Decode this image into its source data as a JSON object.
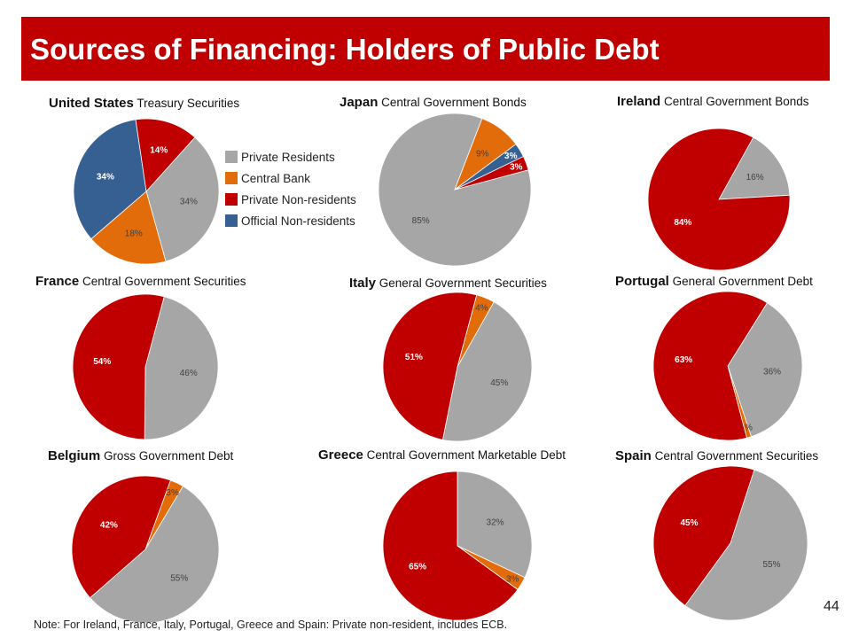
{
  "title": "Sources of Financing: Holders of Public Debt",
  "legend": [
    {
      "label": "Private Residents",
      "color": "#a6a6a6"
    },
    {
      "label": "Central Bank",
      "color": "#e36c0a"
    },
    {
      "label": "Private Non-residents",
      "color": "#c00000"
    },
    {
      "label": "Official Non-residents",
      "color": "#376092"
    }
  ],
  "note": "Note: For Ireland, France, Italy, Portugal, Greece and Spain: Private non-resident, includes ECB.",
  "page_number": "44",
  "chart_data": [
    {
      "type": "pie",
      "country": "United States",
      "subtitle": "Treasury Securities",
      "slices": [
        {
          "label": "Private Residents",
          "value": 34,
          "display": "34%"
        },
        {
          "label": "Central Bank",
          "value": 18,
          "display": "18%"
        },
        {
          "label": "Official Non-residents",
          "value": 34,
          "display": "34%"
        },
        {
          "label": "Private Non-residents",
          "value": 14,
          "display": "14%"
        }
      ]
    },
    {
      "type": "pie",
      "country": "Japan",
      "subtitle": "Central Government Bonds",
      "slices": [
        {
          "label": "Private Residents",
          "value": 85,
          "display": "85%"
        },
        {
          "label": "Central Bank",
          "value": 9,
          "display": "9%"
        },
        {
          "label": "Official Non-residents",
          "value": 3,
          "display": "3%"
        },
        {
          "label": "Private Non-residents",
          "value": 3,
          "display": "3%"
        }
      ]
    },
    {
      "type": "pie",
      "country": "Ireland",
      "subtitle": "Central Government Bonds",
      "slices": [
        {
          "label": "Private Residents",
          "value": 16,
          "display": "16%"
        },
        {
          "label": "Private Non-residents",
          "value": 84,
          "display": "84%"
        }
      ]
    },
    {
      "type": "pie",
      "country": "France",
      "subtitle": "Central Government Securities",
      "slices": [
        {
          "label": "Private Residents",
          "value": 46,
          "display": "46%"
        },
        {
          "label": "Private Non-residents",
          "value": 54,
          "display": "54%"
        }
      ]
    },
    {
      "type": "pie",
      "country": "Italy",
      "subtitle": "General Government Securities",
      "slices": [
        {
          "label": "Central Bank",
          "value": 4,
          "display": "4%"
        },
        {
          "label": "Private Residents",
          "value": 45,
          "display": "45%"
        },
        {
          "label": "Private Non-residents",
          "value": 51,
          "display": "51%"
        }
      ]
    },
    {
      "type": "pie",
      "country": "Portugal",
      "subtitle": "General Government Debt",
      "slices": [
        {
          "label": "Private Residents",
          "value": 36,
          "display": "36%"
        },
        {
          "label": "Central Bank",
          "value": 1,
          "display": "1%"
        },
        {
          "label": "Private Non-residents",
          "value": 63,
          "display": "63%"
        }
      ]
    },
    {
      "type": "pie",
      "country": "Belgium",
      "subtitle": "Gross Government Debt",
      "slices": [
        {
          "label": "Central Bank",
          "value": 3,
          "display": "3%"
        },
        {
          "label": "Private Residents",
          "value": 55,
          "display": "55%"
        },
        {
          "label": "Private Non-residents",
          "value": 42,
          "display": "42%"
        }
      ]
    },
    {
      "type": "pie",
      "country": "Greece",
      "subtitle": "Central Government Marketable Debt",
      "slices": [
        {
          "label": "Private Residents",
          "value": 32,
          "display": "32%"
        },
        {
          "label": "Central Bank",
          "value": 3,
          "display": "3%"
        },
        {
          "label": "Private Non-residents",
          "value": 65,
          "display": "65%"
        }
      ]
    },
    {
      "type": "pie",
      "country": "Spain",
      "subtitle": "Central Government Securities",
      "slices": [
        {
          "label": "Private Residents",
          "value": 55,
          "display": "55%"
        },
        {
          "label": "Private Non-residents",
          "value": 45,
          "display": "45%"
        }
      ]
    }
  ]
}
